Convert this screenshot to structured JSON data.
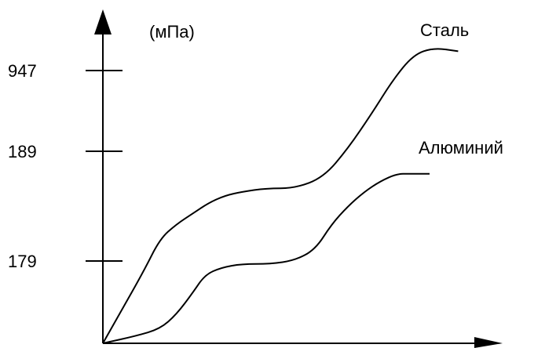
{
  "chart_data": {
    "type": "line",
    "ylabel": "(мПа)",
    "xlabel": "",
    "y_tick_labels": [
      "947",
      "189",
      "179"
    ],
    "grid": false,
    "legend": "inline at curve ends",
    "series": [
      {
        "name": "Сталь",
        "points": [
          [
            0,
            0
          ],
          [
            4,
            8
          ],
          [
            10,
            20
          ],
          [
            14,
            29
          ],
          [
            18,
            33
          ],
          [
            22,
            36
          ],
          [
            26,
            39
          ],
          [
            30,
            41
          ],
          [
            34,
            42
          ],
          [
            40,
            43
          ],
          [
            47,
            43
          ],
          [
            54,
            46
          ],
          [
            60,
            54
          ],
          [
            66,
            64
          ],
          [
            71,
            73
          ],
          [
            76,
            80
          ],
          [
            81,
            82
          ],
          [
            87,
            81
          ]
        ]
      },
      {
        "name": "Алюминий",
        "points": [
          [
            0,
            0
          ],
          [
            8,
            2
          ],
          [
            14,
            4
          ],
          [
            18,
            8
          ],
          [
            22,
            14
          ],
          [
            25,
            19
          ],
          [
            29,
            21
          ],
          [
            34,
            22
          ],
          [
            41,
            22
          ],
          [
            47,
            23
          ],
          [
            52,
            26
          ],
          [
            56,
            33
          ],
          [
            60,
            38
          ],
          [
            64,
            42
          ],
          [
            68,
            45
          ],
          [
            72,
            47
          ],
          [
            75,
            47
          ],
          [
            80,
            47
          ]
        ]
      }
    ]
  }
}
